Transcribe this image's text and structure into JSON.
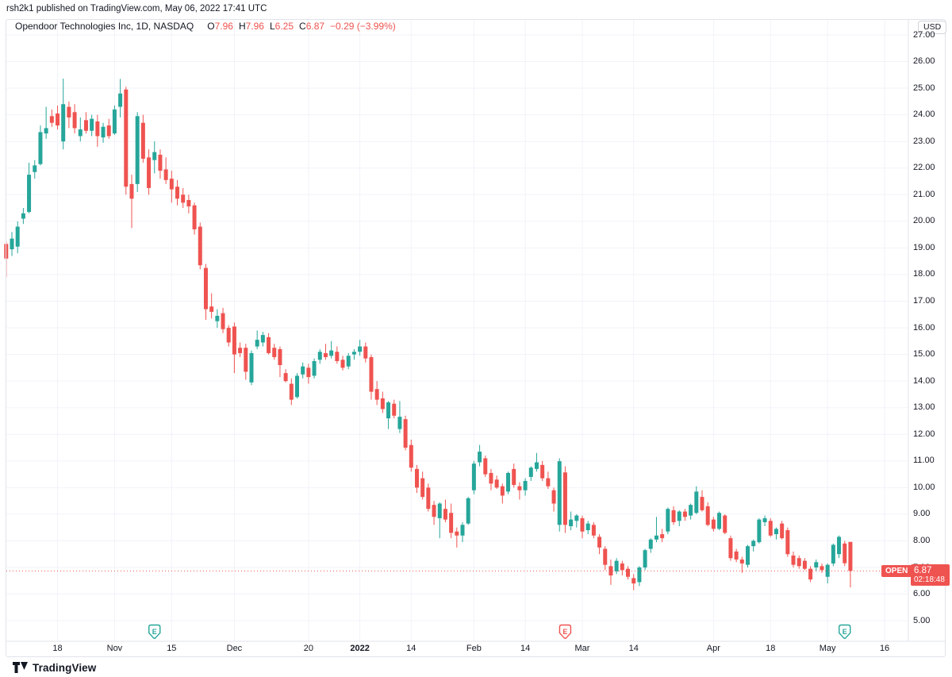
{
  "attribution": "rsh2k1 published on TradingView.com, May 06, 2022 17:41 UTC",
  "legend": {
    "symbol_title": "Opendoor Technologies Inc, 1D, NASDAQ",
    "ohlc": [
      {
        "key": "O",
        "value": "7.96"
      },
      {
        "key": "H",
        "value": "7.96"
      },
      {
        "key": "L",
        "value": "6.25"
      },
      {
        "key": "C",
        "value": "6.87"
      }
    ],
    "change": "−0.29 (−3.99%)"
  },
  "price_axis": {
    "currency": "USD",
    "labels": [
      "27.00",
      "26.00",
      "25.00",
      "24.00",
      "23.00",
      "22.00",
      "21.00",
      "20.00",
      "19.00",
      "18.00",
      "17.00",
      "16.00",
      "15.00",
      "14.00",
      "13.00",
      "12.00",
      "11.00",
      "10.00",
      "9.00",
      "8.00",
      "7.00",
      "6.00",
      "5.00"
    ],
    "last_price_badge": {
      "label": "OPEN",
      "price": "6.87",
      "countdown": "02:18:48"
    }
  },
  "time_axis": {
    "ticks": [
      {
        "label": "18",
        "index": 9,
        "bold": false
      },
      {
        "label": "Nov",
        "index": 19,
        "bold": false
      },
      {
        "label": "15",
        "index": 29,
        "bold": false
      },
      {
        "label": "Dec",
        "index": 40,
        "bold": false
      },
      {
        "label": "20",
        "index": 53,
        "bold": false
      },
      {
        "label": "2022",
        "index": 62,
        "bold": true
      },
      {
        "label": "14",
        "index": 71,
        "bold": false
      },
      {
        "label": "Feb",
        "index": 82,
        "bold": false
      },
      {
        "label": "14",
        "index": 91,
        "bold": false
      },
      {
        "label": "Mar",
        "index": 101,
        "bold": false
      },
      {
        "label": "14",
        "index": 110,
        "bold": false
      },
      {
        "label": "Apr",
        "index": 124,
        "bold": false
      },
      {
        "label": "18",
        "index": 134,
        "bold": false
      },
      {
        "label": "May",
        "index": 144,
        "bold": false
      },
      {
        "label": "16",
        "index": 154,
        "bold": false
      }
    ]
  },
  "events": [
    {
      "candle_index": 26,
      "letter": "E",
      "color": "#26a69a",
      "meaning": "earnings"
    },
    {
      "candle_index": 98,
      "letter": "E",
      "color": "#ef5350",
      "meaning": "earnings"
    },
    {
      "candle_index": 147,
      "letter": "E",
      "color": "#26a69a",
      "meaning": "earnings"
    }
  ],
  "logo": {
    "brand": "TradingView"
  },
  "chart_data": {
    "type": "candlestick",
    "title": "Opendoor Technologies Inc, 1D, NASDAQ",
    "ylabel": "USD",
    "ylim": [
      5.0,
      27.6
    ],
    "grid": true,
    "up_color": "#26a69a",
    "down_color": "#ef5350",
    "grid_color": "#f0f3fa",
    "axis_line_color": "#e0e3eb",
    "last_price": 6.87,
    "last_price_line_color": "#ef5350",
    "candles_ohlc": [
      [
        "2021-10-05",
        19.15,
        19.25,
        17.9,
        18.6
      ],
      [
        "2021-10-06",
        18.95,
        19.6,
        18.7,
        19.35
      ],
      [
        "2021-10-07",
        19.05,
        20.0,
        18.8,
        19.8
      ],
      [
        "2021-10-08",
        20.1,
        20.5,
        19.9,
        20.3
      ],
      [
        "2021-10-11",
        20.35,
        22.2,
        20.3,
        21.75
      ],
      [
        "2021-10-12",
        21.85,
        22.3,
        21.6,
        22.1
      ],
      [
        "2021-10-13",
        22.15,
        23.6,
        22.1,
        23.35
      ],
      [
        "2021-10-14",
        23.3,
        24.3,
        23.1,
        23.5
      ],
      [
        "2021-10-15",
        23.95,
        24.2,
        23.55,
        23.7
      ],
      [
        "2021-10-18",
        24.05,
        24.35,
        23.45,
        23.6
      ],
      [
        "2021-10-19",
        23.0,
        25.36,
        22.7,
        24.4
      ],
      [
        "2021-10-20",
        24.3,
        24.5,
        23.5,
        23.9
      ],
      [
        "2021-10-21",
        24.1,
        24.4,
        23.3,
        23.5
      ],
      [
        "2021-10-22",
        23.2,
        23.9,
        23.0,
        23.45
      ],
      [
        "2021-10-25",
        23.8,
        24.1,
        23.3,
        23.4
      ],
      [
        "2021-10-26",
        23.4,
        24.0,
        23.2,
        23.85
      ],
      [
        "2021-10-27",
        23.75,
        24.0,
        22.8,
        23.2
      ],
      [
        "2021-10-28",
        23.15,
        23.7,
        22.95,
        23.55
      ],
      [
        "2021-10-29",
        23.6,
        23.85,
        23.1,
        23.2
      ],
      [
        "2021-11-01",
        23.3,
        24.35,
        23.25,
        24.2
      ],
      [
        "2021-11-02",
        24.3,
        25.35,
        23.9,
        24.8
      ],
      [
        "2021-11-03",
        24.95,
        25.05,
        21.0,
        21.3
      ],
      [
        "2021-11-04",
        21.4,
        21.75,
        19.75,
        20.85
      ],
      [
        "2021-11-05",
        21.4,
        24.1,
        21.1,
        23.95
      ],
      [
        "2021-11-08",
        23.7,
        24.0,
        22.2,
        22.35
      ],
      [
        "2021-11-09",
        22.4,
        22.7,
        21.0,
        21.25
      ],
      [
        "2021-11-10",
        22.3,
        23.0,
        21.8,
        22.6
      ],
      [
        "2021-11-11",
        22.5,
        22.7,
        21.6,
        21.9
      ],
      [
        "2021-11-12",
        21.95,
        22.4,
        21.4,
        21.55
      ],
      [
        "2021-11-15",
        21.6,
        21.9,
        20.7,
        21.2
      ],
      [
        "2021-11-16",
        21.3,
        21.55,
        20.6,
        20.85
      ],
      [
        "2021-11-17",
        21.0,
        21.25,
        20.5,
        20.7
      ],
      [
        "2021-11-18",
        20.8,
        21.0,
        20.3,
        20.56
      ],
      [
        "2021-11-19",
        20.6,
        20.7,
        19.5,
        19.7
      ],
      [
        "2021-11-22",
        19.8,
        19.95,
        18.2,
        18.35
      ],
      [
        "2021-11-23",
        18.25,
        18.4,
        16.3,
        16.7
      ],
      [
        "2021-11-24",
        16.8,
        17.3,
        16.35,
        16.6
      ],
      [
        "2021-11-26",
        16.25,
        16.7,
        16.0,
        16.45
      ],
      [
        "2021-11-29",
        16.55,
        16.75,
        15.8,
        15.95
      ],
      [
        "2021-11-30",
        16.0,
        16.1,
        15.3,
        15.45
      ],
      [
        "2021-12-01",
        16.05,
        16.2,
        14.3,
        15.0
      ],
      [
        "2021-12-02",
        15.25,
        15.45,
        14.9,
        15.05
      ],
      [
        "2021-12-03",
        15.25,
        15.4,
        14.05,
        14.35
      ],
      [
        "2021-12-06",
        13.95,
        15.15,
        13.85,
        15.05
      ],
      [
        "2021-12-07",
        15.3,
        15.9,
        15.2,
        15.55
      ],
      [
        "2021-12-08",
        15.45,
        15.85,
        15.3,
        15.73
      ],
      [
        "2021-12-09",
        15.65,
        15.8,
        15.0,
        15.05
      ],
      [
        "2021-12-10",
        15.25,
        15.4,
        14.8,
        14.9
      ],
      [
        "2021-12-13",
        15.2,
        15.3,
        14.15,
        14.6
      ],
      [
        "2021-12-14",
        14.3,
        14.45,
        13.95,
        14.0
      ],
      [
        "2021-12-15",
        13.9,
        14.1,
        13.1,
        13.3
      ],
      [
        "2021-12-16",
        13.4,
        14.3,
        13.35,
        14.2
      ],
      [
        "2021-12-17",
        14.25,
        14.7,
        14.1,
        14.55
      ],
      [
        "2021-12-20",
        14.5,
        14.65,
        13.9,
        14.15
      ],
      [
        "2021-12-21",
        14.2,
        14.85,
        14.1,
        14.75
      ],
      [
        "2021-12-22",
        14.8,
        15.2,
        14.65,
        15.1
      ],
      [
        "2021-12-23",
        15.05,
        15.4,
        14.8,
        14.9
      ],
      [
        "2021-12-27",
        14.95,
        15.5,
        14.85,
        15.15
      ],
      [
        "2021-12-28",
        15.1,
        15.3,
        14.65,
        14.75
      ],
      [
        "2021-12-29",
        14.8,
        14.95,
        14.4,
        14.5
      ],
      [
        "2021-12-30",
        14.55,
        15.05,
        14.45,
        14.95
      ],
      [
        "2021-12-31",
        15.0,
        15.2,
        14.8,
        15.1
      ],
      [
        "2022-01-03",
        15.1,
        15.55,
        14.95,
        15.3
      ],
      [
        "2022-01-04",
        15.3,
        15.45,
        14.7,
        14.85
      ],
      [
        "2022-01-05",
        14.9,
        15.0,
        13.3,
        13.6
      ],
      [
        "2022-01-06",
        13.7,
        14.0,
        13.1,
        13.3
      ],
      [
        "2022-01-07",
        13.35,
        13.6,
        12.8,
        12.95
      ],
      [
        "2022-01-10",
        12.6,
        13.25,
        12.2,
        13.2
      ],
      [
        "2022-01-11",
        13.15,
        13.3,
        12.6,
        12.7
      ],
      [
        "2022-01-12",
        12.2,
        13.25,
        12.05,
        12.66
      ],
      [
        "2022-01-13",
        12.57,
        12.7,
        11.4,
        11.5
      ],
      [
        "2022-01-14",
        11.6,
        11.8,
        10.6,
        10.75
      ],
      [
        "2022-01-18",
        10.7,
        10.85,
        9.8,
        10.0
      ],
      [
        "2022-01-19",
        10.35,
        10.6,
        9.55,
        9.65
      ],
      [
        "2022-01-20",
        10.0,
        10.15,
        9.1,
        9.2
      ],
      [
        "2022-01-21",
        9.35,
        9.5,
        8.6,
        8.9
      ],
      [
        "2022-01-24",
        8.85,
        9.45,
        8.1,
        9.4
      ],
      [
        "2022-01-25",
        9.2,
        9.55,
        8.7,
        8.8
      ],
      [
        "2022-01-26",
        9.05,
        9.4,
        8.1,
        8.3
      ],
      [
        "2022-01-27",
        8.35,
        8.5,
        7.75,
        8.2
      ],
      [
        "2022-01-28",
        8.2,
        8.7,
        7.95,
        8.6
      ],
      [
        "2022-01-31",
        8.65,
        9.65,
        8.6,
        9.6
      ],
      [
        "2022-02-01",
        9.9,
        11.0,
        9.75,
        10.9
      ],
      [
        "2022-02-02",
        10.95,
        11.6,
        10.8,
        11.35
      ],
      [
        "2022-02-03",
        11.1,
        11.2,
        10.4,
        10.5
      ],
      [
        "2022-02-04",
        10.55,
        10.7,
        9.9,
        10.15
      ],
      [
        "2022-02-07",
        10.3,
        10.45,
        9.95,
        10.0
      ],
      [
        "2022-02-08",
        10.05,
        10.15,
        9.4,
        9.7
      ],
      [
        "2022-02-09",
        9.85,
        10.6,
        9.75,
        10.55
      ],
      [
        "2022-02-10",
        10.7,
        10.9,
        10.0,
        10.1
      ],
      [
        "2022-02-11",
        10.05,
        10.2,
        9.55,
        9.9
      ],
      [
        "2022-02-14",
        9.9,
        10.35,
        9.7,
        10.25
      ],
      [
        "2022-02-15",
        10.4,
        10.8,
        10.25,
        10.75
      ],
      [
        "2022-02-16",
        10.7,
        11.3,
        10.6,
        10.95
      ],
      [
        "2022-02-17",
        10.85,
        11.0,
        10.25,
        10.35
      ],
      [
        "2022-02-18",
        10.35,
        10.6,
        9.95,
        10.05
      ],
      [
        "2022-02-22",
        9.9,
        10.0,
        9.1,
        9.4
      ],
      [
        "2022-02-23",
        8.6,
        11.1,
        8.35,
        10.99
      ],
      [
        "2022-02-24",
        10.57,
        10.8,
        8.3,
        8.6
      ],
      [
        "2022-02-25",
        8.55,
        9.1,
        8.4,
        8.8
      ],
      [
        "2022-02-28",
        8.75,
        9.0,
        8.5,
        8.95
      ],
      [
        "2022-03-01",
        8.85,
        8.95,
        8.1,
        8.35
      ],
      [
        "2022-03-02",
        8.4,
        8.75,
        8.25,
        8.65
      ],
      [
        "2022-03-03",
        8.6,
        8.7,
        8.1,
        8.2
      ],
      [
        "2022-03-04",
        8.15,
        8.25,
        7.5,
        7.75
      ],
      [
        "2022-03-07",
        7.7,
        7.8,
        6.9,
        7.1
      ],
      [
        "2022-03-08",
        7.05,
        7.3,
        6.35,
        6.7
      ],
      [
        "2022-03-09",
        6.85,
        7.35,
        6.75,
        7.25
      ],
      [
        "2022-03-10",
        7.15,
        7.25,
        6.7,
        6.9
      ],
      [
        "2022-03-11",
        6.95,
        7.05,
        6.55,
        6.65
      ],
      [
        "2022-03-14",
        6.6,
        6.75,
        6.15,
        6.4
      ],
      [
        "2022-03-15",
        6.45,
        7.05,
        6.3,
        7.0
      ],
      [
        "2022-03-16",
        7.0,
        7.7,
        6.9,
        7.65
      ],
      [
        "2022-03-17",
        7.7,
        8.1,
        7.55,
        8.05
      ],
      [
        "2022-03-18",
        8.05,
        8.9,
        7.95,
        8.2
      ],
      [
        "2022-03-21",
        8.25,
        8.45,
        7.95,
        8.1
      ],
      [
        "2022-03-22",
        8.35,
        9.25,
        8.25,
        9.2
      ],
      [
        "2022-03-23",
        9.15,
        9.3,
        8.6,
        8.7
      ],
      [
        "2022-03-24",
        8.75,
        9.15,
        8.55,
        9.1
      ],
      [
        "2022-03-25",
        9.1,
        9.2,
        8.75,
        8.9
      ],
      [
        "2022-03-28",
        8.95,
        9.4,
        8.8,
        9.35
      ],
      [
        "2022-03-29",
        9.05,
        10.05,
        9.0,
        9.85
      ],
      [
        "2022-03-30",
        9.65,
        9.9,
        9.1,
        9.15
      ],
      [
        "2022-03-31",
        9.3,
        9.45,
        8.55,
        8.6
      ],
      [
        "2022-04-01",
        8.8,
        8.9,
        8.35,
        8.45
      ],
      [
        "2022-04-04",
        8.45,
        9.1,
        8.4,
        9.05
      ],
      [
        "2022-04-05",
        8.95,
        9.0,
        8.25,
        8.3
      ],
      [
        "2022-04-06",
        8.1,
        8.2,
        7.25,
        7.35
      ],
      [
        "2022-04-07",
        7.6,
        7.7,
        7.2,
        7.3
      ],
      [
        "2022-04-08",
        7.3,
        7.4,
        6.8,
        7.15
      ],
      [
        "2022-04-11",
        7.1,
        7.85,
        7.0,
        7.8
      ],
      [
        "2022-04-12",
        7.8,
        8.05,
        7.6,
        8.0
      ],
      [
        "2022-04-13",
        7.95,
        8.85,
        7.9,
        8.8
      ],
      [
        "2022-04-14",
        8.7,
        8.95,
        8.55,
        8.85
      ],
      [
        "2022-04-18",
        8.75,
        8.85,
        8.15,
        8.2
      ],
      [
        "2022-04-19",
        8.25,
        8.5,
        8.05,
        8.45
      ],
      [
        "2022-04-20",
        8.65,
        8.75,
        8.05,
        8.1
      ],
      [
        "2022-04-21",
        8.4,
        8.5,
        7.4,
        7.5
      ],
      [
        "2022-04-22",
        7.45,
        7.6,
        7.0,
        7.1
      ],
      [
        "2022-04-25",
        7.35,
        7.45,
        6.95,
        7.05
      ],
      [
        "2022-04-26",
        7.25,
        7.35,
        6.9,
        6.95
      ],
      [
        "2022-04-27",
        6.95,
        7.05,
        6.45,
        6.55
      ],
      [
        "2022-04-28",
        7.0,
        7.3,
        6.85,
        7.2
      ],
      [
        "2022-04-29",
        7.05,
        7.15,
        6.8,
        6.9
      ],
      [
        "2022-05-02",
        6.65,
        7.15,
        6.4,
        7.1
      ],
      [
        "2022-05-03",
        7.15,
        7.9,
        7.05,
        7.85
      ],
      [
        "2022-05-04",
        7.5,
        8.2,
        7.35,
        8.15
      ],
      [
        "2022-05-05",
        7.9,
        8.0,
        7.05,
        7.16
      ],
      [
        "2022-05-06",
        7.96,
        7.96,
        6.25,
        6.87
      ]
    ]
  }
}
